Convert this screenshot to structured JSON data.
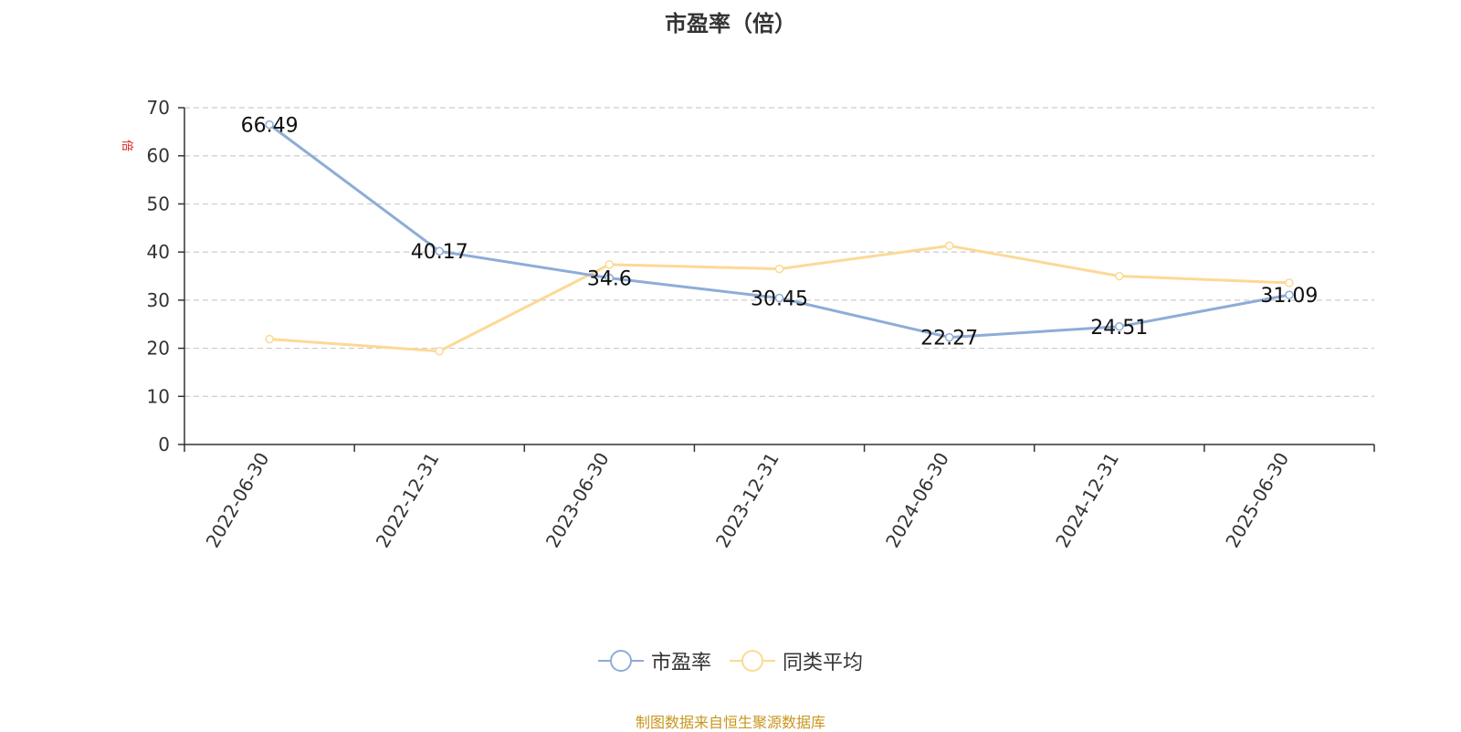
{
  "chart_data": {
    "type": "line",
    "title": "市盈率（倍）",
    "ylabel": "倍",
    "categories": [
      "2022-06-30",
      "2022-12-31",
      "2023-06-30",
      "2023-12-31",
      "2024-06-30",
      "2024-12-31",
      "2025-06-30"
    ],
    "ylim": [
      0,
      70
    ],
    "yticks": [
      0,
      10,
      20,
      30,
      40,
      50,
      60,
      70
    ],
    "grid": true,
    "legend_position": "bottom",
    "series": [
      {
        "name": "市盈率",
        "color": "#8eacd8",
        "values": [
          66.49,
          40.17,
          34.6,
          30.45,
          22.27,
          24.51,
          31.09
        ],
        "labels": [
          "66.49",
          "40.17",
          "34.6",
          "30.45",
          "22.27",
          "24.51",
          "31.09"
        ]
      },
      {
        "name": "同类平均",
        "color": "#fcd995",
        "values": [
          21.9,
          19.4,
          37.4,
          36.5,
          41.3,
          35.0,
          33.6
        ]
      }
    ]
  },
  "source_note": "制图数据来自恒生聚源数据库"
}
